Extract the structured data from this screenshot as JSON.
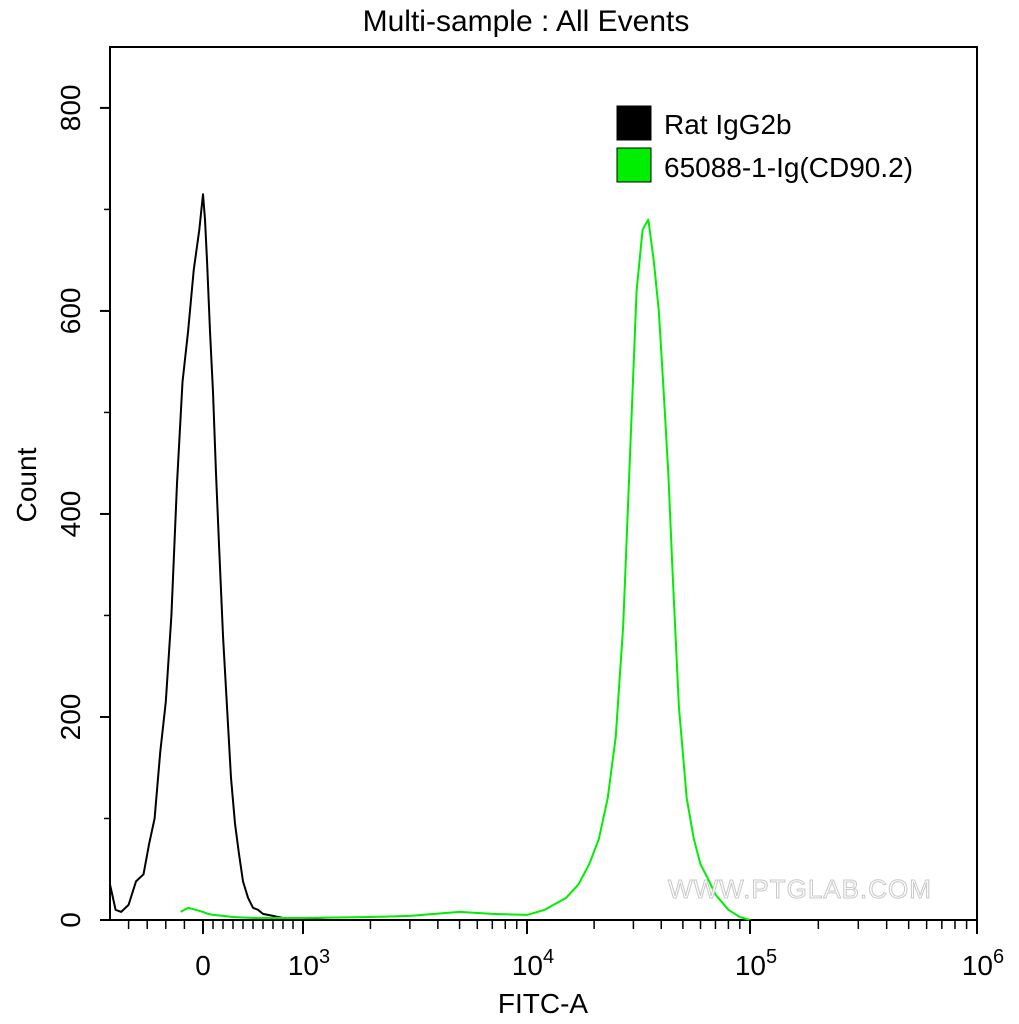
{
  "chart_data": {
    "type": "line",
    "title": "Multi-sample : All Events",
    "xlabel": "FITC-A",
    "ylabel": "Count",
    "x_scale": "biexponential",
    "ylim": [
      0,
      860
    ],
    "y_ticks": [
      0,
      200,
      400,
      600,
      800
    ],
    "x_tick_labels": [
      {
        "value": 0,
        "base": "0",
        "exp": ""
      },
      {
        "value": 1000,
        "base": "10",
        "exp": "3"
      },
      {
        "value": 10000,
        "base": "10",
        "exp": "4"
      },
      {
        "value": 100000,
        "base": "10",
        "exp": "5"
      },
      {
        "value": 1000000,
        "base": "10",
        "exp": "6"
      }
    ],
    "legend_position": "top-right",
    "watermark": "WWW.PTGLAB.COM",
    "series": [
      {
        "name": "Rat IgG2b",
        "color": "#000000",
        "x": [
          -500,
          -470,
          -440,
          -400,
          -360,
          -320,
          -290,
          -260,
          -230,
          -200,
          -170,
          -140,
          -110,
          -80,
          -50,
          -20,
          0,
          20,
          40,
          70,
          100,
          130,
          160,
          200,
          240,
          280,
          320,
          360,
          400,
          450,
          500,
          550,
          600,
          650,
          700,
          750,
          800,
          900,
          1000,
          1300,
          2000
        ],
        "values": [
          35,
          10,
          8,
          15,
          38,
          45,
          75,
          100,
          165,
          215,
          300,
          430,
          530,
          580,
          640,
          680,
          715,
          690,
          650,
          580,
          520,
          440,
          370,
          280,
          210,
          140,
          95,
          65,
          38,
          22,
          12,
          10,
          6,
          5,
          4,
          3,
          2,
          1,
          1,
          0,
          0
        ]
      },
      {
        "name": "65088-1-Ig(CD90.2)",
        "color": "#00ee00",
        "x": [
          -120,
          -80,
          -40,
          0,
          50,
          100,
          200,
          300,
          500,
          800,
          1000,
          2000,
          3000,
          5000,
          7000,
          10000,
          12000,
          15000,
          17000,
          19000,
          21000,
          23000,
          25000,
          27000,
          29000,
          31000,
          33000,
          35000,
          37000,
          39000,
          41000,
          43000,
          45000,
          48000,
          52000,
          56000,
          60000,
          65000,
          70000,
          80000,
          90000,
          100000
        ],
        "values": [
          8,
          12,
          10,
          8,
          6,
          5,
          4,
          3,
          2,
          2,
          2,
          3,
          4,
          8,
          6,
          5,
          10,
          22,
          35,
          55,
          80,
          120,
          180,
          290,
          460,
          620,
          680,
          690,
          650,
          600,
          520,
          440,
          340,
          210,
          120,
          80,
          55,
          40,
          25,
          10,
          3,
          0
        ]
      }
    ]
  }
}
